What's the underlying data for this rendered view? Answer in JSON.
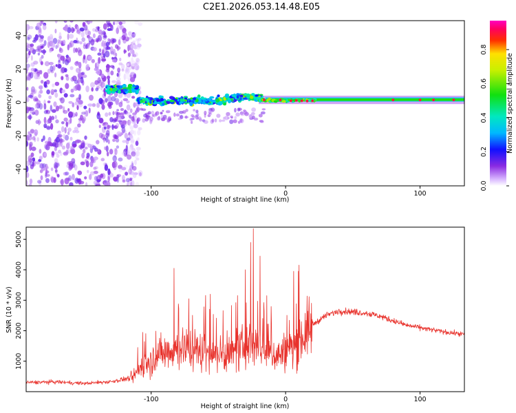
{
  "title": "C2E1.2026.053.14.48.E05",
  "chart_data": [
    {
      "type": "heatmap",
      "title": "C2E1.2026.053.14.48.E05",
      "xlabel": "Height of straight line (km)",
      "ylabel": "Frequency (Hz)",
      "xlim": [
        -193,
        133
      ],
      "ylim": [
        -50,
        49
      ],
      "xticks": [
        -100,
        0,
        100
      ],
      "xtick_labels": [
        "-100",
        "0",
        "100"
      ],
      "yticks": [
        -40,
        -20,
        0,
        20,
        40
      ],
      "ytick_labels": [
        "-40",
        "-20",
        "0",
        "20",
        "40"
      ],
      "colorbar": {
        "label": "Normalized spectral amplitude",
        "range": [
          0,
          0.97
        ],
        "ticks": [
          0,
          0.2,
          0.4,
          0.6,
          0.8
        ],
        "tick_labels": [
          "0.0",
          "0.2",
          "0.4",
          "0.6",
          "0.8"
        ]
      },
      "features": [
        {
          "name": "diffuse noise",
          "x_range": [
            -193,
            -110
          ],
          "freq_range": [
            -50,
            49
          ],
          "amplitude": 0.05
        },
        {
          "name": "scattered blobs",
          "x_range": [
            -133,
            -18
          ],
          "freq_center": 3,
          "freq_spread": 9,
          "amplitude": 0.3
        },
        {
          "name": "converging trace",
          "x_range": [
            -18,
            25
          ],
          "freq_center": 1,
          "amplitude": 0.5
        },
        {
          "name": "steady trace",
          "x_range": [
            25,
            133
          ],
          "freq_center": 1.5,
          "amplitude": 0.6
        }
      ]
    },
    {
      "type": "line",
      "xlabel": "Height of straight line (km)",
      "ylabel": "SNR (10 * v/v)",
      "xlim": [
        -193,
        133
      ],
      "ylim": [
        0,
        5400
      ],
      "xticks": [
        -100,
        0,
        100
      ],
      "xtick_labels": [
        "-100",
        "0",
        "100"
      ],
      "yticks": [
        1000,
        2000,
        3000,
        4000,
        5000
      ],
      "ytick_labels": [
        "1000",
        "2000",
        "3000",
        "4000",
        "5000"
      ],
      "series": [
        {
          "name": "SNR",
          "color": "#e8322c",
          "x": [
            -193,
            -170,
            -150,
            -130,
            -115,
            -105,
            -95,
            -85,
            -75,
            -65,
            -55,
            -45,
            -35,
            -25,
            -20,
            -15,
            -5,
            5,
            10,
            20,
            30,
            40,
            50,
            60,
            70,
            80,
            90,
            100,
            110,
            120,
            133
          ],
          "y": [
            300,
            320,
            270,
            330,
            450,
            900,
            1200,
            1400,
            1450,
            1350,
            1250,
            1200,
            1300,
            1700,
            1500,
            1300,
            1200,
            1450,
            1700,
            2200,
            2500,
            2650,
            2620,
            2580,
            2480,
            2330,
            2180,
            2100,
            2020,
            1950,
            1880
          ],
          "spikes": [
            {
              "x": -110,
              "y": 1450
            },
            {
              "x": -83,
              "y": 4050
            },
            {
              "x": -72,
              "y": 3050
            },
            {
              "x": -56,
              "y": 3200
            },
            {
              "x": -30,
              "y": 4000
            },
            {
              "x": -26,
              "y": 4900
            },
            {
              "x": -24,
              "y": 5350
            },
            {
              "x": -19,
              "y": 4450
            },
            {
              "x": -14,
              "y": 3150
            },
            {
              "x": 6,
              "y": 3950
            }
          ]
        }
      ]
    }
  ]
}
